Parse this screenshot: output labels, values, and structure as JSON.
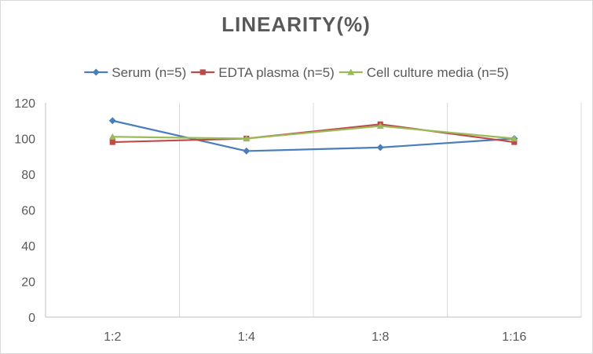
{
  "chart_data": {
    "type": "line",
    "title": "LINEARITY(%)",
    "xlabel": "",
    "ylabel": "",
    "categories": [
      "1:2",
      "1:4",
      "1:8",
      "1:16"
    ],
    "ylim": [
      0,
      120
    ],
    "yticks": [
      0,
      20,
      40,
      60,
      80,
      100,
      120
    ],
    "grid": "vertical",
    "legend_position": "top",
    "series": [
      {
        "name": "Serum (n=5)",
        "values": [
          110,
          93,
          95,
          100
        ],
        "color": "#4a7ebb",
        "marker": "diamond"
      },
      {
        "name": "EDTA plasma (n=5)",
        "values": [
          98,
          100,
          108,
          98
        ],
        "color": "#be4b48",
        "marker": "square"
      },
      {
        "name": "Cell culture media (n=5)",
        "values": [
          101,
          100,
          107,
          100
        ],
        "color": "#9bbb59",
        "marker": "triangle"
      }
    ]
  }
}
